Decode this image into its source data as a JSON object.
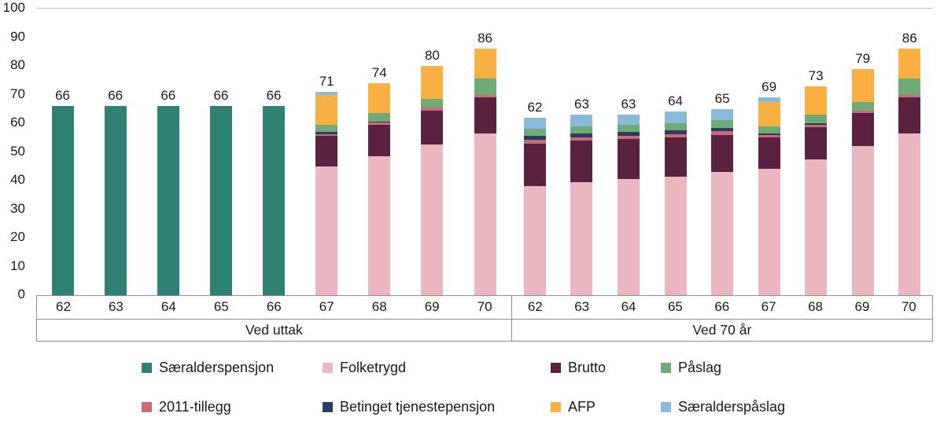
{
  "chart_data": {
    "type": "bar",
    "variant": "stacked-grouped",
    "title": "",
    "xlabel": "",
    "ylabel": "",
    "ylim": [
      0,
      100
    ],
    "yticks": [
      0,
      10,
      20,
      30,
      40,
      50,
      60,
      70,
      80,
      90,
      100
    ],
    "grid": false,
    "legend_position": "bottom",
    "colors": {
      "Særalderspensjon": "#2E8173",
      "Folketrygd": "#EBB6BF",
      "Brutto": "#5A2240",
      "Påslag": "#70AB77",
      "2011-tillegg": "#C96A76",
      "Betinget tjenestepensjon": "#2D3A66",
      "AFP": "#F8B042",
      "Særalderspåslag": "#8ABAD9"
    },
    "legend": [
      "Særalderspensjon",
      "Folketrygd",
      "Brutto",
      "Påslag",
      "2011-tillegg",
      "Betinget tjenestepensjon",
      "AFP",
      "Særalderspåslag"
    ],
    "groups": [
      {
        "label": "Ved uttak",
        "bars": [
          {
            "category": "62",
            "total": 66,
            "segments": [
              {
                "name": "Særalderspensjon",
                "value": 66
              }
            ]
          },
          {
            "category": "63",
            "total": 66,
            "segments": [
              {
                "name": "Særalderspensjon",
                "value": 66
              }
            ]
          },
          {
            "category": "64",
            "total": 66,
            "segments": [
              {
                "name": "Særalderspensjon",
                "value": 66
              }
            ]
          },
          {
            "category": "65",
            "total": 66,
            "segments": [
              {
                "name": "Særalderspensjon",
                "value": 66
              }
            ]
          },
          {
            "category": "66",
            "total": 66,
            "segments": [
              {
                "name": "Særalderspensjon",
                "value": 66
              }
            ]
          },
          {
            "category": "67",
            "total": 71,
            "segments": [
              {
                "name": "Folketrygd",
                "value": 45
              },
              {
                "name": "Brutto",
                "value": 10.5
              },
              {
                "name": "2011-tillegg",
                "value": 0.7
              },
              {
                "name": "Betinget tjenestepensjon",
                "value": 0.8
              },
              {
                "name": "Påslag",
                "value": 2.5
              },
              {
                "name": "AFP",
                "value": 10.5
              },
              {
                "name": "Særalderspåslag",
                "value": 1
              }
            ]
          },
          {
            "category": "68",
            "total": 74,
            "segments": [
              {
                "name": "Folketrygd",
                "value": 48.5
              },
              {
                "name": "Brutto",
                "value": 11
              },
              {
                "name": "2011-tillegg",
                "value": 0.7
              },
              {
                "name": "Betinget tjenestepensjon",
                "value": 0.3
              },
              {
                "name": "Påslag",
                "value": 3
              },
              {
                "name": "AFP",
                "value": 10.5
              }
            ]
          },
          {
            "category": "69",
            "total": 80,
            "segments": [
              {
                "name": "Folketrygd",
                "value": 52.5
              },
              {
                "name": "Brutto",
                "value": 12
              },
              {
                "name": "2011-tillegg",
                "value": 1
              },
              {
                "name": "Påslag",
                "value": 3
              },
              {
                "name": "AFP",
                "value": 11.5
              }
            ]
          },
          {
            "category": "70",
            "total": 86,
            "segments": [
              {
                "name": "Folketrygd",
                "value": 56.5
              },
              {
                "name": "Brutto",
                "value": 12.5
              },
              {
                "name": "2011-tillegg",
                "value": 1
              },
              {
                "name": "Påslag",
                "value": 5.5
              },
              {
                "name": "AFP",
                "value": 10.5
              }
            ]
          }
        ]
      },
      {
        "label": "Ved 70 år",
        "bars": [
          {
            "category": "62",
            "total": 62,
            "segments": [
              {
                "name": "Folketrygd",
                "value": 38
              },
              {
                "name": "Brutto",
                "value": 15
              },
              {
                "name": "2011-tillegg",
                "value": 1.2
              },
              {
                "name": "Betinget tjenestepensjon",
                "value": 1.3
              },
              {
                "name": "Påslag",
                "value": 2.5
              },
              {
                "name": "Særalderspåslag",
                "value": 4
              }
            ]
          },
          {
            "category": "63",
            "total": 63,
            "segments": [
              {
                "name": "Folketrygd",
                "value": 39.5
              },
              {
                "name": "Brutto",
                "value": 14.5
              },
              {
                "name": "2011-tillegg",
                "value": 1.2
              },
              {
                "name": "Betinget tjenestepensjon",
                "value": 1.3
              },
              {
                "name": "Påslag",
                "value": 2.5
              },
              {
                "name": "Særalderspåslag",
                "value": 4
              }
            ]
          },
          {
            "category": "64",
            "total": 63,
            "segments": [
              {
                "name": "Folketrygd",
                "value": 40.5
              },
              {
                "name": "Brutto",
                "value": 14
              },
              {
                "name": "2011-tillegg",
                "value": 1.2
              },
              {
                "name": "Betinget tjenestepensjon",
                "value": 1.3
              },
              {
                "name": "Påslag",
                "value": 2.5
              },
              {
                "name": "Særalderspåslag",
                "value": 3.5
              }
            ]
          },
          {
            "category": "65",
            "total": 64,
            "segments": [
              {
                "name": "Folketrygd",
                "value": 41.5
              },
              {
                "name": "Brutto",
                "value": 13.5
              },
              {
                "name": "2011-tillegg",
                "value": 1.2
              },
              {
                "name": "Betinget tjenestepensjon",
                "value": 1.3
              },
              {
                "name": "Påslag",
                "value": 2.5
              },
              {
                "name": "Særalderspåslag",
                "value": 4
              }
            ]
          },
          {
            "category": "66",
            "total": 65,
            "segments": [
              {
                "name": "Folketrygd",
                "value": 43
              },
              {
                "name": "Brutto",
                "value": 13
              },
              {
                "name": "2011-tillegg",
                "value": 1.2
              },
              {
                "name": "Betinget tjenestepensjon",
                "value": 1.3
              },
              {
                "name": "Påslag",
                "value": 2.5
              },
              {
                "name": "Særalderspåslag",
                "value": 4
              }
            ]
          },
          {
            "category": "67",
            "total": 69,
            "segments": [
              {
                "name": "Folketrygd",
                "value": 44
              },
              {
                "name": "Brutto",
                "value": 11
              },
              {
                "name": "2011-tillegg",
                "value": 1
              },
              {
                "name": "Betinget tjenestepensjon",
                "value": 0.5
              },
              {
                "name": "Påslag",
                "value": 2.5
              },
              {
                "name": "AFP",
                "value": 8.5
              },
              {
                "name": "Særalderspåslag",
                "value": 1.5
              }
            ]
          },
          {
            "category": "68",
            "total": 73,
            "segments": [
              {
                "name": "Folketrygd",
                "value": 47.5
              },
              {
                "name": "Brutto",
                "value": 11
              },
              {
                "name": "2011-tillegg",
                "value": 1
              },
              {
                "name": "Betinget tjenestepensjon",
                "value": 0.5
              },
              {
                "name": "Påslag",
                "value": 3
              },
              {
                "name": "AFP",
                "value": 10
              }
            ]
          },
          {
            "category": "69",
            "total": 79,
            "segments": [
              {
                "name": "Folketrygd",
                "value": 52
              },
              {
                "name": "Brutto",
                "value": 11.5
              },
              {
                "name": "2011-tillegg",
                "value": 1
              },
              {
                "name": "Påslag",
                "value": 3
              },
              {
                "name": "AFP",
                "value": 11.5
              }
            ]
          },
          {
            "category": "70",
            "total": 86,
            "segments": [
              {
                "name": "Folketrygd",
                "value": 56.5
              },
              {
                "name": "Brutto",
                "value": 12.5
              },
              {
                "name": "2011-tillegg",
                "value": 1
              },
              {
                "name": "Påslag",
                "value": 5.5
              },
              {
                "name": "AFP",
                "value": 10.5
              }
            ]
          }
        ]
      }
    ]
  }
}
